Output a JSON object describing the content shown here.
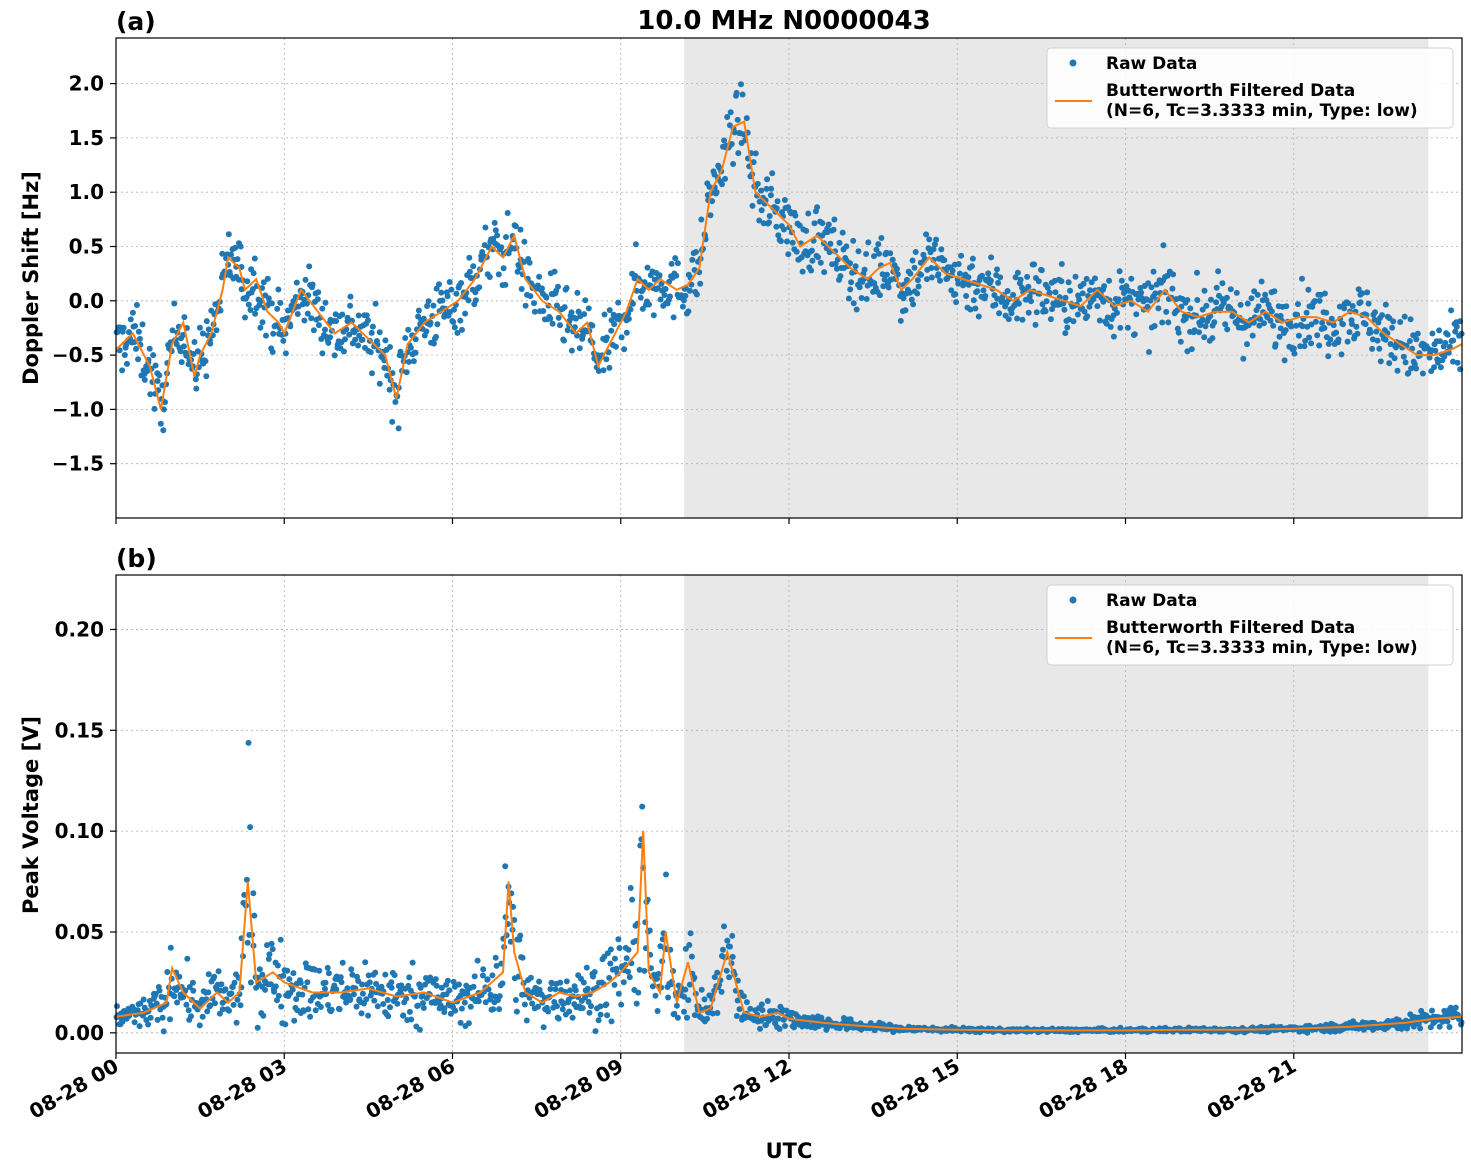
{
  "figure": {
    "title": "10.0 MHz N0000043",
    "xlabel": "UTC",
    "x_range_hours": [
      0,
      24
    ],
    "x_ticks": [
      {
        "hour": 0,
        "label": "08-28 00"
      },
      {
        "hour": 3,
        "label": "08-28 03"
      },
      {
        "hour": 6,
        "label": "08-28 06"
      },
      {
        "hour": 9,
        "label": "08-28 09"
      },
      {
        "hour": 12,
        "label": "08-28 12"
      },
      {
        "hour": 15,
        "label": "08-28 15"
      },
      {
        "hour": 18,
        "label": "08-28 18"
      },
      {
        "hour": 21,
        "label": "08-28 21"
      }
    ],
    "shaded_region_hours": [
      10.13,
      23.4
    ],
    "colors": {
      "raw": "#1f77b4",
      "filtered": "#ff7f0e",
      "shade": "#e8e8e8",
      "grid": "#b0b0b0"
    },
    "legend": {
      "raw": "Raw Data",
      "filtered_line1": "Butterworth Filtered Data",
      "filtered_line2": "(N=6, Tc=3.3333 min, Type: low)",
      "placement": "top-right"
    }
  },
  "chart_data": [
    {
      "type": "scatter",
      "panel": "(a)",
      "ylabel": "Doppler Shift [Hz]",
      "ylim": [
        -2.0,
        2.42
      ],
      "yticks": [
        {
          "v": -1.5,
          "label": "−1.5"
        },
        {
          "v": -1.0,
          "label": "−1.0"
        },
        {
          "v": -0.5,
          "label": "−0.5"
        },
        {
          "v": 0.0,
          "label": "0.0"
        },
        {
          "v": 0.5,
          "label": "0.5"
        },
        {
          "v": 1.0,
          "label": "1.0"
        },
        {
          "v": 1.5,
          "label": "1.5"
        },
        {
          "v": 2.0,
          "label": "2.0"
        }
      ],
      "grid": true,
      "series": [
        {
          "name": "Raw Data",
          "spread": 0.28
        },
        {
          "name": "Butterworth Filtered Data",
          "x": [
            0,
            0.3,
            0.6,
            0.8,
            0.9,
            1.0,
            1.2,
            1.4,
            1.5,
            1.7,
            1.9,
            2.0,
            2.2,
            2.3,
            2.5,
            2.7,
            2.9,
            3.0,
            3.3,
            3.6,
            3.9,
            4.2,
            4.4,
            4.6,
            4.8,
            5.0,
            5.2,
            5.5,
            5.8,
            6.1,
            6.4,
            6.7,
            6.9,
            7.1,
            7.3,
            7.6,
            7.9,
            8.2,
            8.4,
            8.6,
            8.9,
            9.1,
            9.3,
            9.5,
            9.7,
            10.0,
            10.2,
            10.4,
            10.6,
            10.8,
            11.0,
            11.2,
            11.4,
            11.6,
            11.8,
            12.0,
            12.2,
            12.5,
            12.8,
            13.1,
            13.4,
            13.6,
            13.8,
            14.0,
            14.2,
            14.5,
            14.8,
            15.1,
            15.4,
            15.7,
            16.0,
            16.3,
            16.6,
            16.9,
            17.2,
            17.5,
            17.8,
            18.1,
            18.4,
            18.7,
            19.0,
            19.3,
            19.6,
            19.9,
            20.2,
            20.5,
            20.8,
            21.1,
            21.4,
            21.7,
            22.0,
            22.3,
            22.6,
            22.9,
            23.2,
            23.5,
            23.8,
            24.0
          ],
          "values": [
            -0.45,
            -0.3,
            -0.6,
            -1.0,
            -0.7,
            -0.4,
            -0.2,
            -0.7,
            -0.5,
            -0.3,
            0.1,
            0.4,
            0.3,
            0.1,
            0.2,
            -0.1,
            -0.2,
            -0.3,
            0.1,
            -0.1,
            -0.3,
            -0.2,
            -0.3,
            -0.4,
            -0.5,
            -0.9,
            -0.4,
            -0.2,
            -0.1,
            0.0,
            0.2,
            0.5,
            0.4,
            0.6,
            0.2,
            0.0,
            -0.1,
            -0.3,
            -0.2,
            -0.6,
            -0.3,
            -0.1,
            0.2,
            0.1,
            0.2,
            0.1,
            0.15,
            0.3,
            1.0,
            1.2,
            1.6,
            1.65,
            1.0,
            0.9,
            0.8,
            0.7,
            0.5,
            0.6,
            0.45,
            0.3,
            0.2,
            0.3,
            0.35,
            0.1,
            0.2,
            0.4,
            0.25,
            0.2,
            0.15,
            0.1,
            0.0,
            0.1,
            0.05,
            0.0,
            -0.05,
            0.1,
            -0.05,
            0.0,
            -0.1,
            0.1,
            -0.1,
            -0.15,
            -0.1,
            -0.1,
            -0.2,
            -0.1,
            -0.2,
            -0.15,
            -0.15,
            -0.2,
            -0.1,
            -0.15,
            -0.3,
            -0.4,
            -0.5,
            -0.5,
            -0.45,
            -0.4
          ]
        }
      ]
    },
    {
      "type": "scatter",
      "panel": "(b)",
      "ylabel": "Peak Voltage [V]",
      "ylim": [
        -0.01,
        0.227
      ],
      "yticks": [
        {
          "v": 0.0,
          "label": "0.00"
        },
        {
          "v": 0.05,
          "label": "0.05"
        },
        {
          "v": 0.1,
          "label": "0.10"
        },
        {
          "v": 0.15,
          "label": "0.15"
        },
        {
          "v": 0.2,
          "label": "0.20"
        }
      ],
      "grid": true,
      "series": [
        {
          "name": "Raw Data",
          "spread": 0.7
        },
        {
          "name": "Butterworth Filtered Data",
          "x": [
            0,
            0.5,
            0.9,
            1.0,
            1.2,
            1.5,
            1.8,
            2.0,
            2.2,
            2.35,
            2.5,
            2.8,
            3.0,
            3.5,
            4.0,
            4.5,
            5.0,
            5.5,
            6.0,
            6.5,
            6.9,
            7.0,
            7.1,
            7.3,
            7.6,
            7.9,
            8.2,
            8.5,
            8.8,
            9.0,
            9.3,
            9.4,
            9.5,
            9.7,
            9.8,
            10.0,
            10.2,
            10.4,
            10.6,
            10.9,
            11.0,
            11.2,
            11.5,
            11.8,
            12.0,
            12.3,
            12.6,
            13.0,
            13.5,
            14.0,
            15.0,
            16.0,
            17.0,
            18.0,
            19.0,
            20.0,
            21.0,
            22.0,
            22.5,
            23.0,
            23.5,
            24.0
          ],
          "values": [
            0.008,
            0.01,
            0.015,
            0.032,
            0.02,
            0.012,
            0.02,
            0.015,
            0.02,
            0.075,
            0.025,
            0.03,
            0.025,
            0.02,
            0.02,
            0.022,
            0.018,
            0.02,
            0.015,
            0.02,
            0.03,
            0.075,
            0.04,
            0.02,
            0.015,
            0.02,
            0.018,
            0.02,
            0.025,
            0.03,
            0.04,
            0.1,
            0.03,
            0.02,
            0.05,
            0.015,
            0.035,
            0.01,
            0.012,
            0.04,
            0.03,
            0.01,
            0.008,
            0.01,
            0.007,
            0.006,
            0.005,
            0.004,
            0.003,
            0.002,
            0.0015,
            0.0012,
            0.0012,
            0.0012,
            0.0015,
            0.0015,
            0.002,
            0.003,
            0.004,
            0.005,
            0.007,
            0.008
          ]
        }
      ]
    }
  ]
}
